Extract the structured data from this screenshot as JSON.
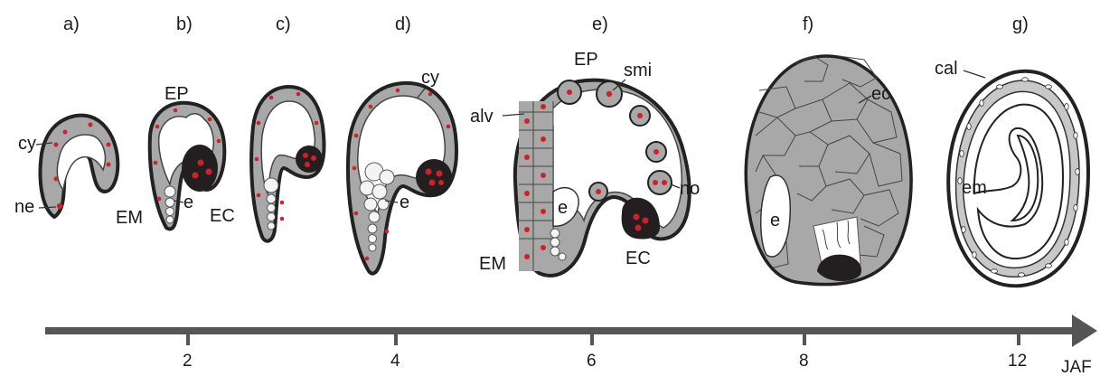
{
  "colors": {
    "cytoplasm": "#a8a8a8",
    "outline": "#222222",
    "nucleus": "#d0202b",
    "dark_cell": "#231f20",
    "axis": "#555555"
  },
  "stages": [
    {
      "id": "a",
      "label": "a)"
    },
    {
      "id": "b",
      "label": "b)"
    },
    {
      "id": "c",
      "label": "c)"
    },
    {
      "id": "d",
      "label": "d)"
    },
    {
      "id": "e",
      "label": "e)"
    },
    {
      "id": "f",
      "label": "f)"
    },
    {
      "id": "g",
      "label": "g)"
    }
  ],
  "labels": {
    "a_cy": "cy",
    "a_ne": "ne",
    "b_ep": "EP",
    "b_em": "EM",
    "b_e": "e",
    "b_ec": "EC",
    "d_cy": "cy",
    "d_e": "e",
    "e_ep": "EP",
    "e_smi": "smi",
    "e_alv": "alv",
    "e_no": "no",
    "e_e": "e",
    "e_em": "EM",
    "e_ec": "EC",
    "f_ec": "ec",
    "f_e": "e",
    "g_cal": "cal",
    "g_em": "em"
  },
  "axis": {
    "unit": "JAF",
    "ticks": [
      "2",
      "4",
      "6",
      "8",
      "12"
    ]
  }
}
